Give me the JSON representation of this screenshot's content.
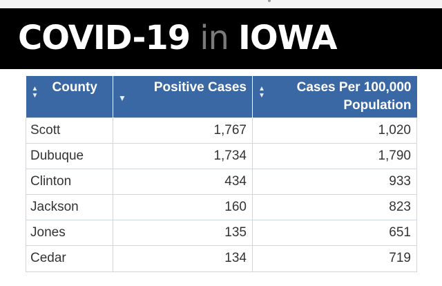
{
  "banner": {
    "title_part1": "COVID-19",
    "title_part2": "in",
    "title_part3": "IOWA"
  },
  "table": {
    "columns": [
      {
        "label": "County",
        "sort_icon": "sort-both-icon"
      },
      {
        "label": "Positive Cases",
        "sort_icon": "sort-desc-icon"
      },
      {
        "label": "Cases Per 100,000 Population",
        "sort_icon": "sort-both-icon"
      }
    ],
    "rows": [
      {
        "county": "Scott",
        "positive_cases": "1,767",
        "cases_per_100k": "1,020"
      },
      {
        "county": "Dubuque",
        "positive_cases": "1,734",
        "cases_per_100k": "1,790"
      },
      {
        "county": "Clinton",
        "positive_cases": "434",
        "cases_per_100k": "933"
      },
      {
        "county": "Jackson",
        "positive_cases": "160",
        "cases_per_100k": "823"
      },
      {
        "county": "Jones",
        "positive_cases": "135",
        "cases_per_100k": "651"
      },
      {
        "county": "Cedar",
        "positive_cases": "134",
        "cases_per_100k": "719"
      }
    ]
  },
  "colors": {
    "header_bg": "#3a68a4",
    "banner_bg": "#000000",
    "banner_dim_text": "#7a7a7a"
  }
}
